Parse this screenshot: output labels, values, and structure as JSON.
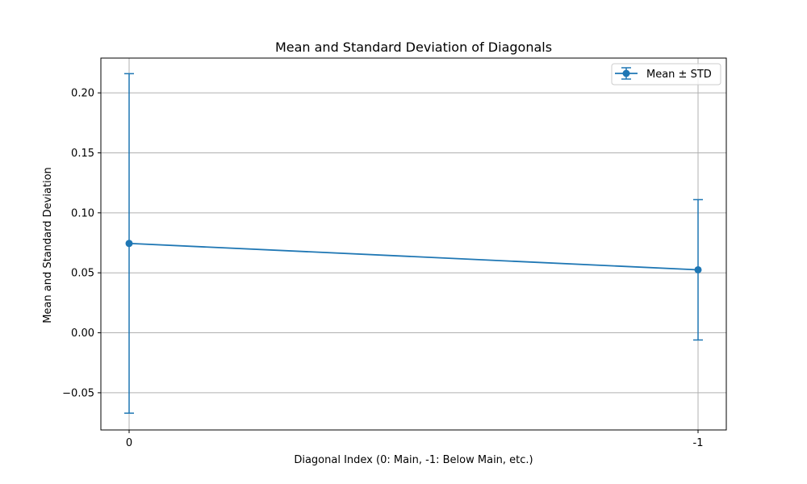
{
  "chart_data": {
    "type": "line",
    "title": "Mean and Standard Deviation of Diagonals",
    "xlabel": "Diagonal Index (0: Main, -1: Below Main, etc.)",
    "ylabel": "Mean and Standard Deviation",
    "categories": [
      "0",
      "-1"
    ],
    "series": [
      {
        "name": "Mean ± STD",
        "values": [
          0.0745,
          0.0525
        ],
        "error": [
          0.1415,
          0.0585
        ]
      }
    ],
    "ylim": [
      -0.081,
      0.229
    ],
    "yticks": [
      -0.05,
      0.0,
      0.05,
      0.1,
      0.15,
      0.2
    ],
    "ytick_labels": [
      "−0.05",
      "0.00",
      "0.05",
      "0.10",
      "0.15",
      "0.20"
    ],
    "grid": true,
    "legend_position": "top-right",
    "colors": {
      "series": "#1f77b4",
      "grid": "#b0b0b0"
    }
  }
}
